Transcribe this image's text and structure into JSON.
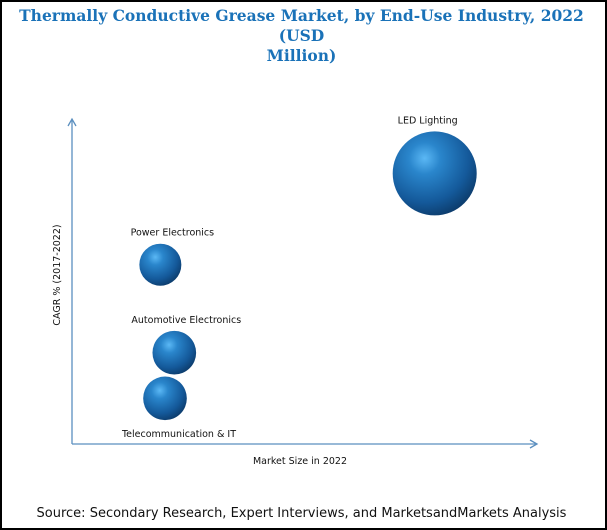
{
  "chart_data": {
    "type": "scatter",
    "subtype": "bubble",
    "title": "Thermally Conductive Grease Market, by End-Use Industry, 2022 (USD Million)",
    "xlabel": "Market Size in 2022",
    "ylabel": "CAGR % (2017-2022)",
    "xlim": [
      0,
      100
    ],
    "ylim": [
      0,
      100
    ],
    "grid": false,
    "legend": "none",
    "axis_ticks": false,
    "units_note": "Axes unlabeled; values are relative positions on a 0-100 scale",
    "points": [
      {
        "label": "LED Lighting",
        "x": 78,
        "y": 83,
        "size": 100
      },
      {
        "label": "Power Electronics",
        "x": 19,
        "y": 55,
        "size": 25
      },
      {
        "label": "Automotive Electronics",
        "x": 22,
        "y": 28,
        "size": 27
      },
      {
        "label": "Telecommunication & IT",
        "x": 20,
        "y": 14,
        "size": 27
      }
    ],
    "bubble_color": "#1f6fb5"
  },
  "source": "Source: Secondary Research, Expert Interviews, and MarketsandMarkets Analysis",
  "title_lines": [
    "Thermally Conductive Grease Market, by End-Use Industry, 2022 (USD",
    "Million)"
  ]
}
